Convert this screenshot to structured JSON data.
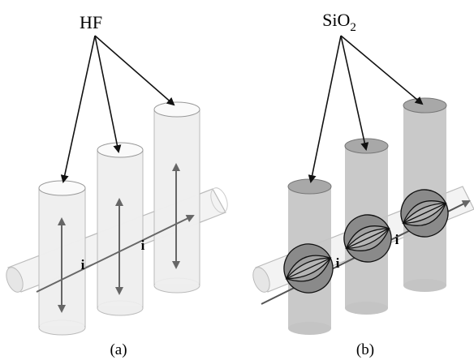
{
  "panels": [
    {
      "label": "HF",
      "current_labels": [
        "i",
        "i"
      ],
      "caption": "(a)"
    },
    {
      "label": "SiO",
      "label_subscript": "2",
      "current_labels": [
        "i",
        "i"
      ],
      "caption": "(b)"
    }
  ]
}
